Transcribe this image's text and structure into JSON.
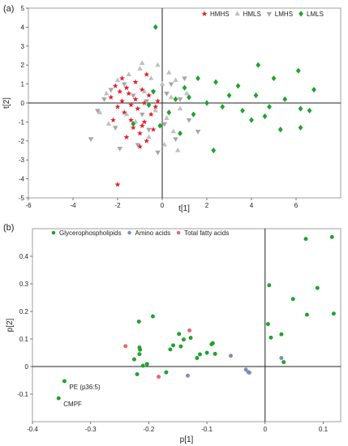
{
  "chart_data": [
    {
      "type": "scatter",
      "panel_label": "(a)",
      "xlabel": "t[1]",
      "ylabel": "t[2]",
      "xlim": [
        -6,
        8
      ],
      "ylim": [
        -5,
        5
      ],
      "xticks": [
        -6,
        -4,
        -2,
        0,
        2,
        4,
        6
      ],
      "yticks": [
        -5,
        -4,
        -3,
        -2,
        -1,
        0,
        1,
        2,
        3,
        4,
        5
      ],
      "legend_position": "top-right",
      "series": [
        {
          "name": "HMHS",
          "marker": "star",
          "color": "#e3202a",
          "points": [
            [
              -2.1,
              0.9
            ],
            [
              -1.9,
              0.6
            ],
            [
              -2.3,
              0.3
            ],
            [
              -1.6,
              0.8
            ],
            [
              -1.8,
              0.1
            ],
            [
              -2.0,
              -0.2
            ],
            [
              -1.5,
              0.5
            ],
            [
              -1.7,
              -0.5
            ],
            [
              -1.4,
              -0.9
            ],
            [
              -1.2,
              0.2
            ],
            [
              -0.9,
              0.7
            ],
            [
              -1.1,
              -0.3
            ],
            [
              -0.8,
              -1.0
            ],
            [
              -0.6,
              0.4
            ],
            [
              -0.5,
              -0.6
            ],
            [
              -1.3,
              -1.3
            ],
            [
              -1.0,
              -1.6
            ],
            [
              -0.7,
              -2.0
            ],
            [
              -0.4,
              -1.4
            ],
            [
              -0.2,
              0.1
            ],
            [
              -2.2,
              -0.9
            ],
            [
              -1.6,
              -1.8
            ],
            [
              -0.9,
              -1.2
            ],
            [
              -0.3,
              -0.2
            ],
            [
              -1.8,
              1.3
            ],
            [
              -1.2,
              1.1
            ],
            [
              -0.7,
              1.5
            ],
            [
              -2.0,
              -4.3
            ],
            [
              -1.4,
              -0.1
            ],
            [
              -0.8,
              0.0
            ],
            [
              -1.0,
              -2.3
            ]
          ]
        },
        {
          "name": "HMLS",
          "marker": "triangle",
          "color": "#c0c0c0",
          "points": [
            [
              -2.5,
              0.5
            ],
            [
              -2.0,
              1.2
            ],
            [
              -1.5,
              1.5
            ],
            [
              -1.0,
              1.8
            ],
            [
              -0.5,
              1.3
            ],
            [
              0.0,
              1.0
            ],
            [
              0.3,
              1.6
            ],
            [
              0.6,
              1.2
            ],
            [
              -0.8,
              0.6
            ],
            [
              -0.3,
              -0.4
            ],
            [
              0.2,
              -0.8
            ],
            [
              0.5,
              -1.5
            ],
            [
              0.8,
              -0.3
            ],
            [
              1.1,
              0.5
            ],
            [
              -1.6,
              -0.6
            ],
            [
              -1.2,
              -1.0
            ],
            [
              -0.6,
              -1.8
            ],
            [
              0.1,
              -2.2
            ],
            [
              0.7,
              -2.5
            ],
            [
              -2.8,
              -0.5
            ],
            [
              -2.4,
              -1.1
            ],
            [
              -0.2,
              2.0
            ],
            [
              0.4,
              0.3
            ],
            [
              -0.9,
              2.1
            ]
          ]
        },
        {
          "name": "LMHS",
          "marker": "triangle-down",
          "color": "#a6a6a6",
          "points": [
            [
              -3.2,
              -1.9
            ],
            [
              -2.9,
              -0.4
            ],
            [
              -2.6,
              0.2
            ],
            [
              -2.1,
              -1.3
            ],
            [
              -1.7,
              1.0
            ],
            [
              -1.3,
              0.4
            ],
            [
              -0.9,
              -0.6
            ],
            [
              -0.4,
              0.6
            ],
            [
              0.1,
              -1.1
            ],
            [
              0.4,
              1.0
            ],
            [
              0.8,
              0.2
            ],
            [
              1.2,
              -0.9
            ],
            [
              1.6,
              -1.5
            ],
            [
              -0.6,
              -1.4
            ],
            [
              -1.9,
              -2.4
            ],
            [
              -1.1,
              -2.2
            ],
            [
              -0.2,
              -2.6
            ],
            [
              0.6,
              -1.9
            ],
            [
              1.0,
              1.3
            ],
            [
              -2.3,
              0.7
            ],
            [
              0.2,
              0.5
            ],
            [
              -0.7,
              0.1
            ]
          ]
        },
        {
          "name": "LMLS",
          "marker": "diamond",
          "color": "#1fa22e",
          "points": [
            [
              -0.3,
              4.0
            ],
            [
              4.3,
              2.0
            ],
            [
              6.1,
              1.7
            ],
            [
              5.0,
              1.3
            ],
            [
              1.6,
              1.3
            ],
            [
              2.4,
              1.1
            ],
            [
              3.4,
              0.9
            ],
            [
              1.0,
              0.8
            ],
            [
              -0.4,
              0.6
            ],
            [
              0.6,
              0.2
            ],
            [
              1.2,
              0.3
            ],
            [
              2.0,
              0.0
            ],
            [
              3.6,
              -0.4
            ],
            [
              4.2,
              0.4
            ],
            [
              5.5,
              0.2
            ],
            [
              6.8,
              0.7
            ],
            [
              4.8,
              -0.2
            ],
            [
              6.2,
              -0.3
            ],
            [
              6.6,
              -0.4
            ],
            [
              2.7,
              -0.2
            ],
            [
              1.4,
              -0.6
            ],
            [
              0.3,
              -0.5
            ],
            [
              -0.1,
              -1.2
            ],
            [
              0.8,
              -1.6
            ],
            [
              -1.3,
              -1.1
            ],
            [
              4.0,
              -0.9
            ],
            [
              5.3,
              -1.4
            ],
            [
              6.2,
              -1.3
            ],
            [
              2.3,
              -2.5
            ],
            [
              -0.6,
              -0.1
            ],
            [
              4.6,
              -0.7
            ],
            [
              3.0,
              0.4
            ]
          ]
        }
      ]
    },
    {
      "type": "scatter",
      "panel_label": "(b)",
      "xlabel": "p[1]",
      "ylabel": "p[2]",
      "xlim": [
        -0.4,
        0.13
      ],
      "ylim": [
        -0.2,
        0.5
      ],
      "xticks": [
        -0.4,
        -0.3,
        -0.2,
        -0.1,
        0,
        0.1
      ],
      "xtick_labels": [
        "-0.4",
        "-0.3",
        "-0.2",
        "-0.1",
        "0",
        "0.1"
      ],
      "yticks": [
        -0.1,
        0,
        0.1,
        0.2,
        0.3,
        0.4
      ],
      "ytick_labels": [
        "-0.1",
        "0",
        "0.1",
        "0.2",
        "0.3",
        "0.4"
      ],
      "legend_position": "top-left",
      "annotations": [
        {
          "text": "PE (p36:5)",
          "x": -0.345,
          "y": -0.053
        },
        {
          "text": "CMPF",
          "x": -0.355,
          "y": -0.115
        }
      ],
      "series": [
        {
          "name": "Glycerophospholipids",
          "marker": "circle",
          "color": "#1fa22e",
          "points": [
            [
              -0.355,
              -0.115
            ],
            [
              -0.345,
              -0.053
            ],
            [
              -0.217,
              0.163
            ],
            [
              -0.193,
              0.182
            ],
            [
              -0.216,
              0.069
            ],
            [
              -0.215,
              0.061
            ],
            [
              -0.216,
              0.045
            ],
            [
              -0.225,
              0.026
            ],
            [
              -0.21,
              0.003
            ],
            [
              -0.22,
              -0.028
            ],
            [
              -0.203,
              0.009
            ],
            [
              -0.17,
              -0.021
            ],
            [
              -0.163,
              0.062
            ],
            [
              -0.158,
              0.077
            ],
            [
              -0.148,
              0.118
            ],
            [
              -0.145,
              0.073
            ],
            [
              -0.14,
              0.098
            ],
            [
              -0.128,
              0.104
            ],
            [
              -0.117,
              0.031
            ],
            [
              -0.112,
              0.044
            ],
            [
              -0.1,
              0.05
            ],
            [
              -0.092,
              0.081
            ],
            [
              -0.09,
              0.085
            ],
            [
              -0.086,
              0.046
            ],
            [
              0.007,
              0.295
            ],
            [
              0.005,
              0.154
            ],
            [
              0.01,
              0.105
            ],
            [
              0.028,
              0.117
            ],
            [
              0.048,
              0.245
            ],
            [
              0.07,
              0.463
            ],
            [
              0.072,
              0.188
            ],
            [
              0.09,
              0.285
            ],
            [
              0.115,
              0.47
            ],
            [
              0.118,
              0.192
            ],
            [
              0.032,
              0.016
            ]
          ]
        },
        {
          "name": "Amino acids",
          "marker": "circle",
          "color": "#7b8ebf",
          "points": [
            [
              -0.059,
              0.039
            ],
            [
              -0.033,
              -0.011
            ],
            [
              -0.029,
              -0.02
            ],
            [
              -0.027,
              -0.022
            ],
            [
              -0.133,
              -0.033
            ],
            [
              0.028,
              0.031
            ]
          ]
        },
        {
          "name": "Total fatty acids",
          "marker": "circle",
          "color": "#e8686c",
          "points": [
            [
              -0.24,
              0.074
            ],
            [
              -0.13,
              0.131
            ],
            [
              -0.183,
              -0.037
            ]
          ]
        }
      ]
    }
  ]
}
